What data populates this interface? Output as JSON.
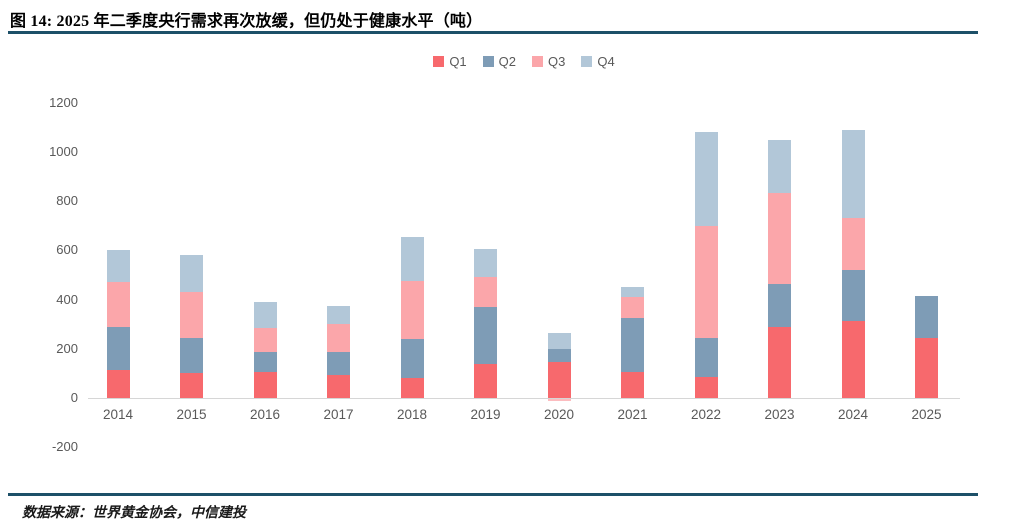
{
  "figure": {
    "title": "图 14: 2025 年二季度央行需求再次放缓，但仍处于健康水平（吨）",
    "source_note": "数据来源：世界黄金协会，中信建投"
  },
  "colors": {
    "q1": "#f7696d",
    "q2": "#7e9cb6",
    "q3": "#fba6aa",
    "q4": "#b2c7d8",
    "rule": "#1d5068",
    "axis_text": "#595959",
    "axis_line": "#d6d6d6"
  },
  "chart_data": {
    "type": "bar",
    "stacked": true,
    "title": "图 14: 2025 年二季度央行需求再次放缓，但仍处于健康水平（吨）",
    "unit": "吨",
    "categories": [
      "2014",
      "2015",
      "2016",
      "2017",
      "2018",
      "2019",
      "2020",
      "2021",
      "2022",
      "2023",
      "2024",
      "2025"
    ],
    "series": [
      {
        "name": "Q1",
        "color_key": "q1",
        "values": [
          115,
          100,
          105,
          95,
          80,
          140,
          145,
          105,
          85,
          290,
          315,
          245
        ]
      },
      {
        "name": "Q2",
        "color_key": "q2",
        "values": [
          175,
          145,
          80,
          90,
          160,
          230,
          55,
          220,
          160,
          175,
          205,
          170
        ]
      },
      {
        "name": "Q3",
        "color_key": "q3",
        "values": [
          180,
          185,
          100,
          115,
          235,
          120,
          -10,
          85,
          455,
          370,
          210,
          0
        ]
      },
      {
        "name": "Q4",
        "color_key": "q4",
        "values": [
          130,
          150,
          105,
          75,
          180,
          115,
          65,
          40,
          380,
          215,
          360,
          0
        ]
      }
    ],
    "totals": [
      600,
      580,
      390,
      375,
      655,
      605,
      255,
      450,
      1080,
      1050,
      1090,
      415
    ],
    "ylim": [
      -200,
      1200
    ],
    "yticks": [
      1200,
      1000,
      800,
      600,
      400,
      200,
      0,
      -200
    ],
    "legend": [
      "Q1",
      "Q2",
      "Q3",
      "Q4"
    ],
    "legend_position": "top-center",
    "grid": false
  }
}
